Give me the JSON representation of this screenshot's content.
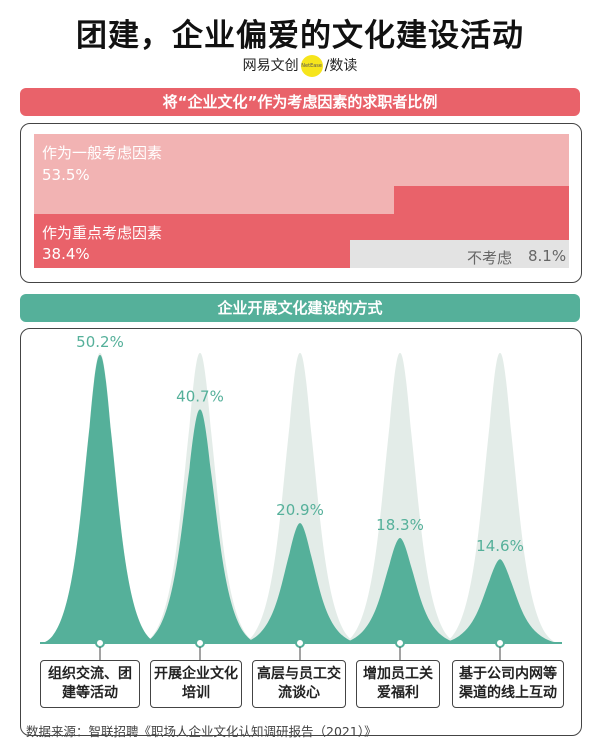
{
  "header": {
    "title": "团建，企业偏爱的文化建设活动",
    "brand_left": "网易文创",
    "brand_logo": "NetEase",
    "brand_right": "/数读"
  },
  "section1": {
    "title": "将“企业文化”作为考虑因素的求职者比例",
    "items": [
      {
        "label": "作为一般考虑因素",
        "value": "53.5%"
      },
      {
        "label": "作为重点考虑因素",
        "value": "38.4%"
      },
      {
        "label": "不考虑",
        "value": "8.1%"
      }
    ]
  },
  "section2": {
    "title": "企业开展文化建设的方式"
  },
  "source": "数据来源：智联招聘《职场人企业文化认知调研报告（2021）》",
  "chart_data": [
    {
      "type": "area",
      "title": "将“企业文化”作为考虑因素的求职者比例",
      "categories": [
        "作为一般考虑因素",
        "作为重点考虑因素",
        "不考虑"
      ],
      "values": [
        53.5,
        38.4,
        8.1
      ],
      "colors": [
        "#f2b3b3",
        "#e9626a",
        "#e3e3e3"
      ]
    },
    {
      "type": "area",
      "title": "企业开展文化建设的方式",
      "categories": [
        "组织交流、团建等活动",
        "开展企业文化培训",
        "高层与员工交流谈心",
        "增加员工关爱福利",
        "基于公司内网等渠道的线上互动"
      ],
      "values": [
        50.2,
        40.7,
        20.9,
        18.3,
        14.6
      ],
      "value_labels": [
        "50.2%",
        "40.7%",
        "20.9%",
        "18.3%",
        "14.6%"
      ],
      "ylim": [
        0,
        50.2
      ],
      "colors": {
        "peak": "#55b09a",
        "background_peak": "#e3ece8"
      }
    }
  ]
}
